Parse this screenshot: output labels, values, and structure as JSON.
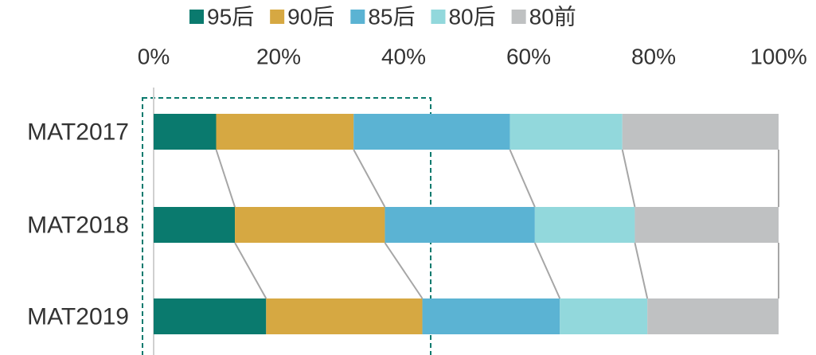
{
  "chart_data": {
    "type": "stacked_bar_horizontal",
    "categories": [
      "MAT2017",
      "MAT2018",
      "MAT2019"
    ],
    "series": [
      {
        "name": "95后",
        "color": "#0a7a6e",
        "values": [
          10,
          13,
          18
        ]
      },
      {
        "name": "90后",
        "color": "#d6a842",
        "values": [
          22,
          24,
          25
        ]
      },
      {
        "name": "85后",
        "color": "#5bb3d3",
        "values": [
          25,
          24,
          22
        ]
      },
      {
        "name": "80后",
        "color": "#92d8dc",
        "values": [
          18,
          16,
          14
        ]
      },
      {
        "name": "80前",
        "color": "#bfc1c2",
        "values": [
          25,
          23,
          21
        ]
      }
    ],
    "xlim": [
      0,
      100
    ],
    "xticks": [
      {
        "value": 0,
        "label": "0%"
      },
      {
        "value": 20,
        "label": "20%"
      },
      {
        "value": 40,
        "label": "40%"
      },
      {
        "value": 60,
        "label": "60%"
      },
      {
        "value": 80,
        "label": "80%"
      },
      {
        "value": 100,
        "label": "100%"
      }
    ],
    "legend": "top"
  }
}
